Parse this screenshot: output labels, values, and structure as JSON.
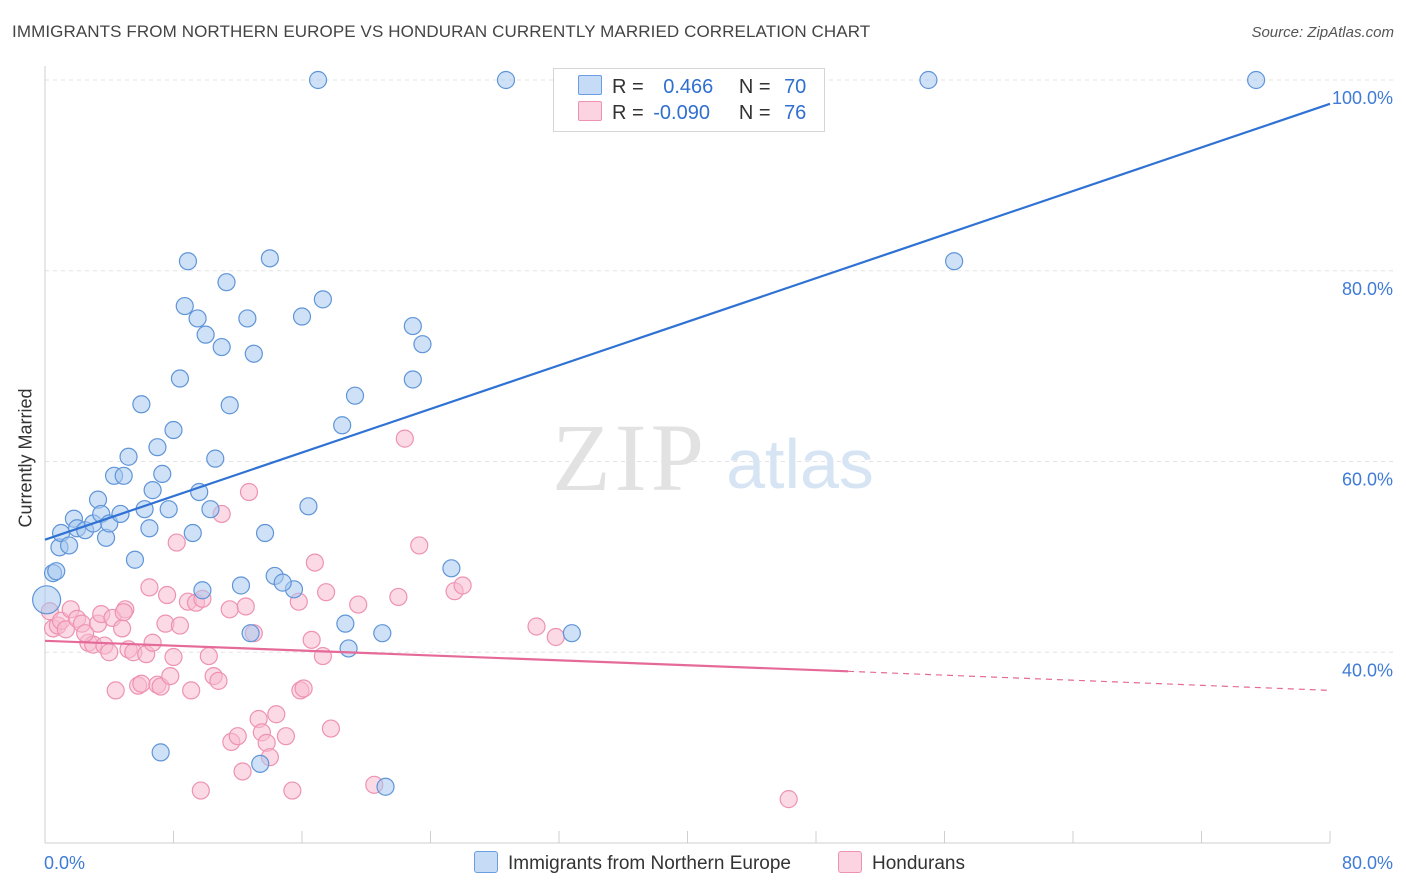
{
  "title": "IMMIGRANTS FROM NORTHERN EUROPE VS HONDURAN CURRENTLY MARRIED CORRELATION CHART",
  "source": "Source: ZipAtlas.com",
  "watermark": {
    "zip": "ZIP",
    "atlas": "atlas"
  },
  "legend": {
    "r_label": "R =",
    "n_label": "N =",
    "rows": [
      {
        "r": "0.466",
        "n": "70",
        "color": "#a8c8f0",
        "border": "#6a9ee0"
      },
      {
        "r": "-0.090",
        "n": "76",
        "color": "#f7bcd0",
        "border": "#ee92b2"
      }
    ]
  },
  "bottom_legend": [
    {
      "label": "Immigrants from Northern Europe",
      "color": "#a8c8f0",
      "border": "#6a9ee0"
    },
    {
      "label": "Hondurans",
      "color": "#f7bcd0",
      "border": "#ee92b2"
    }
  ],
  "chart_data": {
    "type": "scatter",
    "title": "IMMIGRANTS FROM NORTHERN EUROPE VS HONDURAN CURRENTLY MARRIED CORRELATION CHART",
    "xlabel": "",
    "ylabel": "Currently Married",
    "xlim": [
      0,
      80
    ],
    "ylim": [
      20,
      100
    ],
    "x_tick_labels": [
      "0.0%",
      "80.0%"
    ],
    "y_tick_labels": [
      "40.0%",
      "60.0%",
      "80.0%",
      "100.0%"
    ],
    "y_ticks": [
      40,
      60,
      80,
      100
    ],
    "grid": true,
    "legend_position": "top-center",
    "colors": {
      "blue": "#2f72d4",
      "pink": "#e56a98",
      "blue_fill": "#a8c8f0",
      "pink_fill": "#f7bcd0"
    },
    "series": [
      {
        "name": "Immigrants from Northern Europe",
        "r": 0.466,
        "n": 70,
        "trend": {
          "x": [
            0,
            80
          ],
          "y": [
            51.8,
            97.5
          ]
        },
        "points": [
          [
            0.1,
            45.5
          ],
          [
            0.5,
            48.3
          ],
          [
            0.7,
            48.5
          ],
          [
            0.9,
            51.0
          ],
          [
            1.0,
            52.5
          ],
          [
            1.5,
            51.2
          ],
          [
            1.8,
            54.0
          ],
          [
            2.0,
            53.0
          ],
          [
            2.5,
            52.8
          ],
          [
            3.0,
            53.5
          ],
          [
            3.3,
            56.0
          ],
          [
            3.5,
            54.5
          ],
          [
            3.8,
            52.0
          ],
          [
            4.0,
            53.5
          ],
          [
            4.3,
            58.5
          ],
          [
            4.7,
            54.5
          ],
          [
            4.9,
            58.5
          ],
          [
            5.2,
            60.5
          ],
          [
            5.6,
            49.7
          ],
          [
            6.0,
            66.0
          ],
          [
            6.2,
            55.0
          ],
          [
            6.5,
            53.0
          ],
          [
            6.7,
            57.0
          ],
          [
            7.0,
            61.5
          ],
          [
            7.3,
            58.7
          ],
          [
            7.7,
            55.0
          ],
          [
            8.0,
            63.3
          ],
          [
            8.4,
            68.7
          ],
          [
            8.7,
            76.3
          ],
          [
            8.9,
            81.0
          ],
          [
            9.5,
            75.0
          ],
          [
            9.6,
            56.8
          ],
          [
            9.8,
            46.5
          ],
          [
            10.0,
            73.3
          ],
          [
            10.3,
            55.0
          ],
          [
            10.6,
            60.3
          ],
          [
            11.0,
            72.0
          ],
          [
            11.3,
            78.8
          ],
          [
            11.5,
            65.9
          ],
          [
            12.2,
            47.0
          ],
          [
            12.6,
            75.0
          ],
          [
            12.8,
            42.0
          ],
          [
            13.0,
            71.3
          ],
          [
            13.4,
            28.3
          ],
          [
            13.7,
            52.5
          ],
          [
            14.0,
            81.3
          ],
          [
            14.3,
            48.0
          ],
          [
            15.5,
            46.6
          ],
          [
            16.0,
            75.2
          ],
          [
            16.4,
            55.3
          ],
          [
            17.3,
            77.0
          ],
          [
            18.5,
            63.8
          ],
          [
            18.7,
            43.0
          ],
          [
            18.9,
            40.4
          ],
          [
            19.3,
            66.9
          ],
          [
            21.0,
            42.0
          ],
          [
            21.2,
            25.9
          ],
          [
            22.9,
            74.2
          ],
          [
            22.9,
            68.6
          ],
          [
            23.5,
            72.3
          ],
          [
            25.3,
            48.8
          ],
          [
            7.2,
            29.5
          ],
          [
            17.0,
            100.0
          ],
          [
            28.7,
            100.0
          ],
          [
            55.0,
            100.0
          ],
          [
            56.6,
            81.0
          ],
          [
            75.4,
            100.0
          ],
          [
            14.8,
            47.3
          ],
          [
            9.2,
            52.5
          ],
          [
            32.8,
            42.0
          ]
        ]
      },
      {
        "name": "Hondurans",
        "r": -0.09,
        "n": 76,
        "trend": {
          "x": [
            0,
            50
          ],
          "y": [
            41.2,
            38.0
          ],
          "dash_x": [
            50,
            80
          ],
          "dash_y": [
            38.0,
            36.0
          ]
        },
        "points": [
          [
            0.3,
            44.3
          ],
          [
            0.5,
            42.5
          ],
          [
            0.8,
            42.8
          ],
          [
            1.0,
            43.3
          ],
          [
            1.3,
            42.4
          ],
          [
            1.6,
            44.5
          ],
          [
            2.0,
            43.5
          ],
          [
            2.3,
            43.0
          ],
          [
            2.7,
            41.0
          ],
          [
            3.0,
            40.8
          ],
          [
            3.3,
            43.0
          ],
          [
            3.5,
            44.0
          ],
          [
            3.7,
            40.7
          ],
          [
            4.0,
            40.0
          ],
          [
            4.2,
            43.6
          ],
          [
            4.4,
            36.0
          ],
          [
            4.8,
            42.5
          ],
          [
            5.0,
            44.5
          ],
          [
            5.2,
            40.3
          ],
          [
            5.5,
            40.0
          ],
          [
            5.8,
            36.5
          ],
          [
            6.0,
            36.7
          ],
          [
            6.3,
            39.8
          ],
          [
            6.5,
            46.8
          ],
          [
            6.7,
            41.0
          ],
          [
            7.0,
            36.6
          ],
          [
            7.2,
            36.4
          ],
          [
            7.5,
            43.0
          ],
          [
            7.6,
            46.0
          ],
          [
            7.8,
            37.5
          ],
          [
            8.0,
            39.5
          ],
          [
            8.2,
            51.5
          ],
          [
            8.4,
            42.8
          ],
          [
            8.9,
            45.3
          ],
          [
            9.1,
            36.0
          ],
          [
            9.4,
            45.2
          ],
          [
            9.8,
            45.6
          ],
          [
            10.2,
            39.6
          ],
          [
            10.5,
            37.5
          ],
          [
            10.8,
            37.0
          ],
          [
            11.0,
            54.5
          ],
          [
            11.5,
            44.5
          ],
          [
            11.6,
            30.6
          ],
          [
            12.0,
            31.2
          ],
          [
            12.3,
            27.5
          ],
          [
            12.5,
            44.8
          ],
          [
            12.7,
            56.8
          ],
          [
            13.0,
            42.0
          ],
          [
            13.3,
            33.0
          ],
          [
            13.5,
            31.6
          ],
          [
            13.8,
            30.5
          ],
          [
            14.0,
            29.0
          ],
          [
            14.4,
            33.5
          ],
          [
            15.0,
            31.2
          ],
          [
            15.4,
            25.5
          ],
          [
            15.8,
            45.3
          ],
          [
            15.9,
            36.0
          ],
          [
            16.1,
            36.2
          ],
          [
            16.6,
            41.3
          ],
          [
            16.8,
            49.4
          ],
          [
            17.3,
            39.6
          ],
          [
            17.5,
            46.3
          ],
          [
            17.8,
            32.0
          ],
          [
            19.5,
            45.0
          ],
          [
            20.5,
            26.1
          ],
          [
            22.0,
            45.8
          ],
          [
            23.3,
            51.2
          ],
          [
            22.4,
            62.4
          ],
          [
            25.5,
            46.4
          ],
          [
            26.0,
            47.0
          ],
          [
            30.6,
            42.7
          ],
          [
            31.8,
            41.6
          ],
          [
            9.7,
            25.5
          ],
          [
            46.3,
            24.6
          ],
          [
            2.5,
            42.0
          ],
          [
            4.9,
            44.2
          ]
        ]
      }
    ]
  }
}
